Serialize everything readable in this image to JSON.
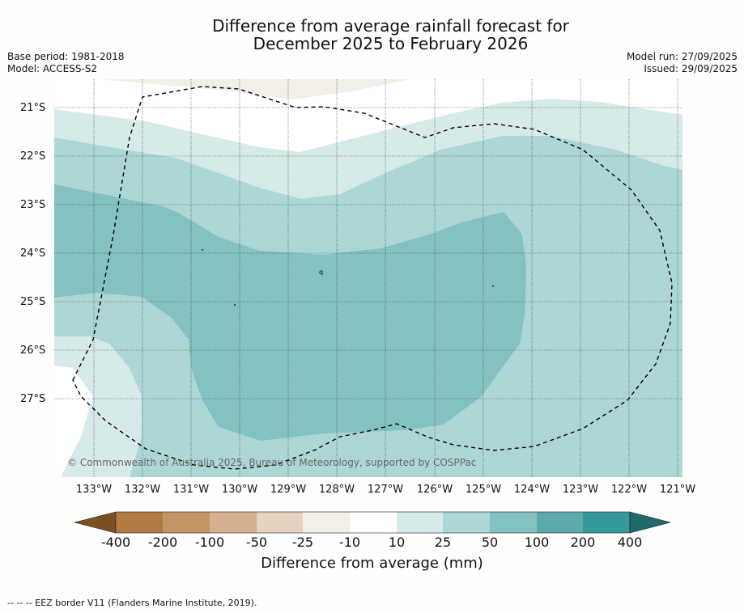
{
  "title": {
    "line1": "Difference from average rainfall forecast for",
    "line2": "December 2025 to February 2026"
  },
  "meta_left": {
    "base_period": "Base period: 1981-2018",
    "model": "Model: ACCESS-S2"
  },
  "meta_right": {
    "model_run": "Model run: 27/09/2025",
    "issued": "Issued: 29/09/2025"
  },
  "map": {
    "lat_labels": [
      "21°S",
      "22°S",
      "23°S",
      "24°S",
      "25°S",
      "26°S",
      "27°S"
    ],
    "lon_labels": [
      "133°W",
      "132°W",
      "131°W",
      "130°W",
      "129°W",
      "128°W",
      "127°W",
      "126°W",
      "125°W",
      "124°W",
      "123°W",
      "122°W",
      "121°W"
    ],
    "island_label": "q",
    "copyright": "© Commonwealth of Australia 2025, Bureau of Meteorology, supported by COSPPac",
    "colors": {
      "band_10_25": "#d6eae9",
      "band_25_50": "#add7d6",
      "band_50_100": "#84c1c1",
      "band_neg25_neg10": "#f2efe8"
    }
  },
  "colorbar": {
    "labels": [
      "-400",
      "-200",
      "-100",
      "-50",
      "-25",
      "-10",
      "10",
      "25",
      "50",
      "100",
      "200",
      "400"
    ],
    "colors": [
      "#7a4f21",
      "#b07a42",
      "#c49566",
      "#d6b08f",
      "#e6d2c0",
      "#f2efe8",
      "#ffffff",
      "#d6eae9",
      "#add7d6",
      "#84c1c1",
      "#5cabab",
      "#35999a",
      "#1f6a6b"
    ],
    "title": "Difference from average (mm)"
  },
  "footnote": "--  --  -- EEZ border V11 (Flanders Marine Institute, 2019)."
}
